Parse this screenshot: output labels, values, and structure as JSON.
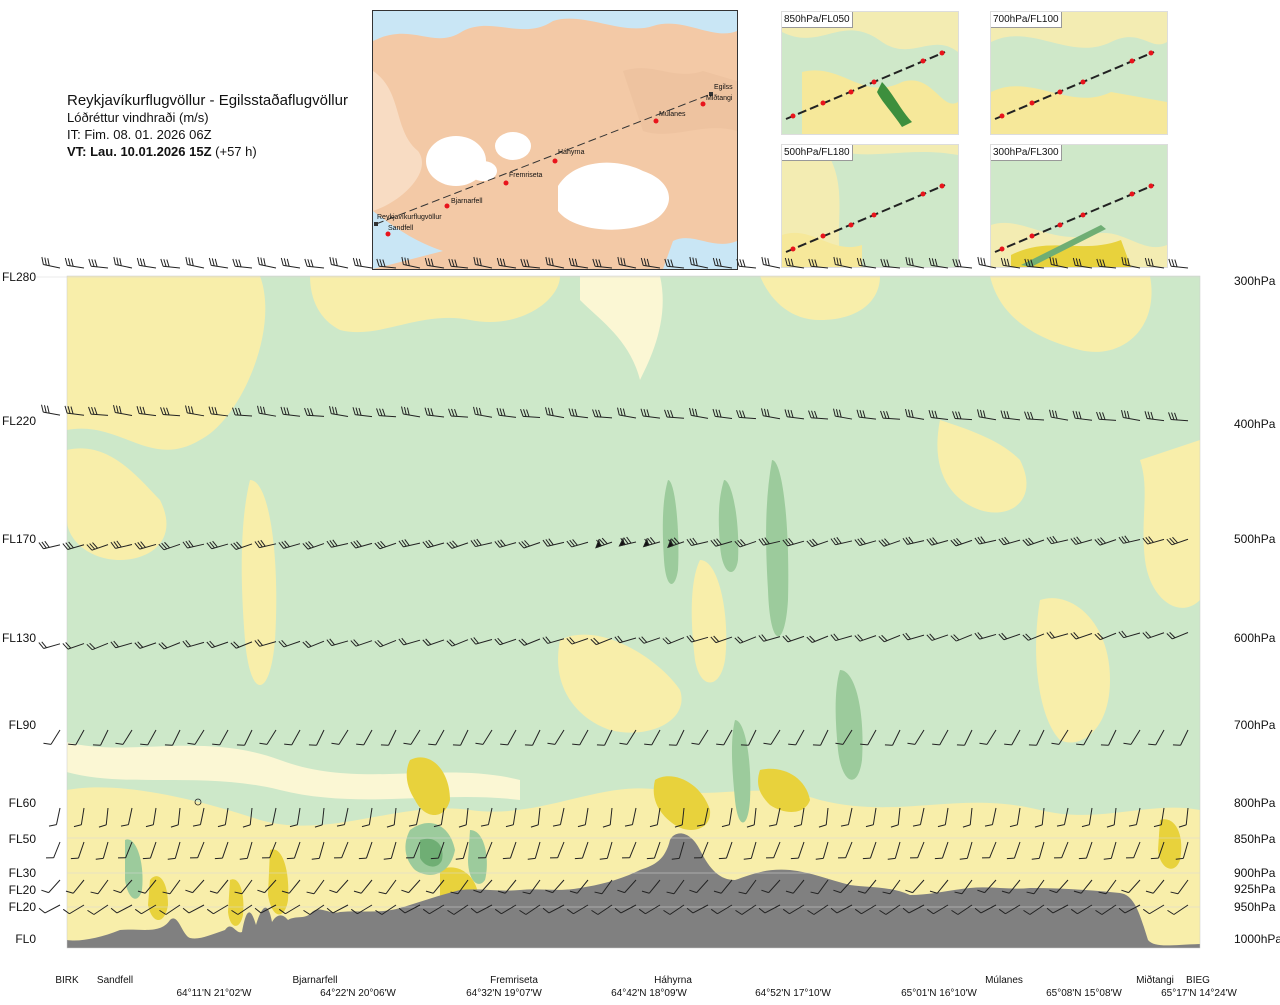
{
  "title": {
    "route": "Reykjavíkurflugvöllur - Egilsstaðaflugvöllur",
    "subtitle": "Lóðréttur vindhraði (m/s)",
    "issue": "IT: Fim. 08. 01. 2026 06Z",
    "valid_bold": "VT: Lau. 10.01.2026 15Z",
    "valid_offset": "(+57 h)"
  },
  "map": {
    "labels": [
      "Reykjavíkurflugvöllur",
      "Sandfell",
      "Bjarnarfell",
      "Fremriseta",
      "Háhyrna",
      "Múlanes",
      "Miðtangi",
      "Egilss"
    ],
    "colors": {
      "sea": "#c9e6f5",
      "land": "#f3c9a6",
      "ice": "#ffffff",
      "route": "#333333",
      "point": "#e8141c"
    }
  },
  "mini_maps": [
    {
      "label": "850hPa/FL050"
    },
    {
      "label": "700hPa/FL100"
    },
    {
      "label": "500hPa/FL180"
    },
    {
      "label": "300hPa/FL300"
    }
  ],
  "chart_data": {
    "type": "heatmap",
    "title": "Lóðréttur vindhraði (m/s)",
    "levels_left": [
      "FL280",
      "FL220",
      "FL170",
      "FL130",
      "FL90",
      "FL60",
      "FL50",
      "FL30",
      "FL20",
      "FL20",
      "FL0"
    ],
    "levels_right": [
      "300hPa",
      "400hPa",
      "500hPa",
      "600hPa",
      "700hPa",
      "800hPa",
      "850hPa",
      "900hPa",
      "925hPa",
      "950hPa",
      "1000hPa"
    ],
    "pressure_hpa": [
      300,
      400,
      500,
      600,
      700,
      800,
      850,
      900,
      925,
      950,
      1000
    ],
    "waypoints": [
      "BIRK",
      "Sandfell",
      "Bjarnarfell",
      "Fremriseta",
      "Háhyrna",
      "Múlanes",
      "Miðtangi",
      "BIEG"
    ],
    "coordinates": [
      "64°11'N 21°02'W",
      "64°22'N 20°06'W",
      "64°32'N 19°07'W",
      "64°42'N 18°09'W",
      "64°52'N 17°10'W",
      "65°01'N 16°10'W",
      "65°08'N 15°08'W",
      "65°17'N 14°24'W"
    ],
    "colors": {
      "strong_up": "#e8d23c",
      "up": "#f8eeaa",
      "weak_up": "#fbf7d4",
      "near_zero": "#ffffff",
      "weak_down": "#e4f2dd",
      "down": "#cde8c9",
      "strong_down": "#9ccb9c",
      "very_strong_down": "#6fae74",
      "terrain": "#808080"
    }
  }
}
